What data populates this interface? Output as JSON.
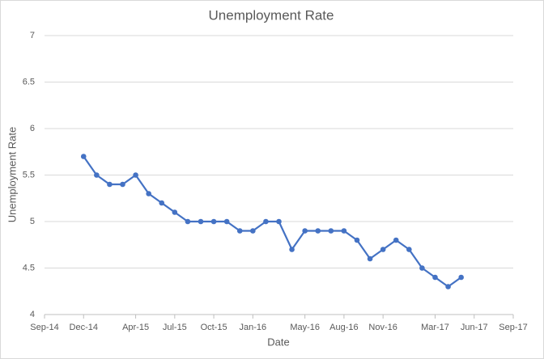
{
  "chart_data": {
    "type": "line",
    "title": "Unemployment Rate",
    "x_label": "Date",
    "y_label": "Unemployment Rate",
    "x": [
      "2014-12",
      "2015-01",
      "2015-02",
      "2015-03",
      "2015-04",
      "2015-05",
      "2015-06",
      "2015-07",
      "2015-08",
      "2015-09",
      "2015-10",
      "2015-11",
      "2015-12",
      "2016-01",
      "2016-02",
      "2016-03",
      "2016-04",
      "2016-05",
      "2016-06",
      "2016-07",
      "2016-08",
      "2016-09",
      "2016-10",
      "2016-11",
      "2016-12",
      "2017-01",
      "2017-02",
      "2017-03",
      "2017-04",
      "2017-05"
    ],
    "series": [
      {
        "name": "Unemployment Rate",
        "color": "#4472c4",
        "values": [
          5.7,
          5.5,
          5.4,
          5.4,
          5.5,
          5.3,
          5.2,
          5.1,
          5.0,
          5.0,
          5.0,
          5.0,
          4.9,
          4.9,
          5.0,
          5.0,
          4.7,
          4.9,
          4.9,
          4.9,
          4.9,
          4.8,
          4.6,
          4.7,
          4.8,
          4.7,
          4.5,
          4.4,
          4.3,
          4.4
        ]
      }
    ],
    "xlim": [
      "2014-09",
      "2017-09"
    ],
    "xticks": [
      {
        "value": "2014-09",
        "label": "Sep-14"
      },
      {
        "value": "2014-12",
        "label": "Dec-14"
      },
      {
        "value": "2015-04",
        "label": "Apr-15"
      },
      {
        "value": "2015-07",
        "label": "Jul-15"
      },
      {
        "value": "2015-10",
        "label": "Oct-15"
      },
      {
        "value": "2016-01",
        "label": "Jan-16"
      },
      {
        "value": "2016-05",
        "label": "May-16"
      },
      {
        "value": "2016-08",
        "label": "Aug-16"
      },
      {
        "value": "2016-11",
        "label": "Nov-16"
      },
      {
        "value": "2017-03",
        "label": "Mar-17"
      },
      {
        "value": "2017-06",
        "label": "Jun-17"
      },
      {
        "value": "2017-09",
        "label": "Sep-17"
      }
    ],
    "ylim": [
      4,
      7
    ],
    "yticks": [
      4,
      4.5,
      5,
      5.5,
      6,
      6.5,
      7
    ],
    "grid": true
  }
}
